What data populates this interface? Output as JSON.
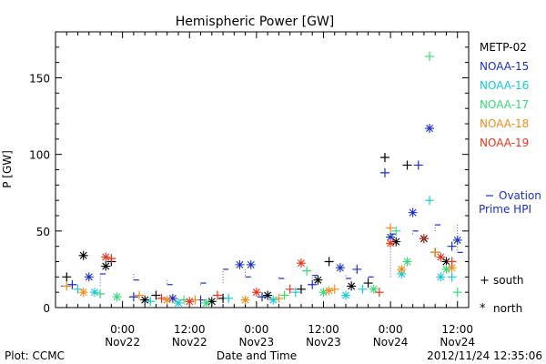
{
  "chart_data": {
    "type": "scatter",
    "title": "Hemispheric Power [GW]",
    "ylabel": "P [GW]",
    "xlabel": "Date and Time",
    "ylim": [
      0,
      180
    ],
    "y_ticks": [
      0,
      50,
      100,
      150
    ],
    "x_range": [
      "2012-11-21 12:00",
      "2012-11-24 14:00"
    ],
    "x_ticks": [
      {
        "t": "2012-11-22 00:00",
        "time": "0:00",
        "date": "Nov22"
      },
      {
        "t": "2012-11-22 12:00",
        "time": "12:00",
        "date": "Nov22"
      },
      {
        "t": "2012-11-23 00:00",
        "time": "0:00",
        "date": "Nov23"
      },
      {
        "t": "2012-11-23 12:00",
        "time": "12:00",
        "date": "Nov23"
      },
      {
        "t": "2012-11-24 00:00",
        "time": "0:00",
        "date": "Nov24"
      },
      {
        "t": "2012-11-24 12:00",
        "time": "12:00",
        "date": "Nov24"
      }
    ],
    "grid": false,
    "legend_position": "right",
    "series": [
      {
        "name": "METP-02",
        "color": "#000000",
        "south": [
          [
            "2012-11-21 14:00",
            20
          ],
          [
            "2012-11-21 22:00",
            30
          ],
          [
            "2012-11-22 06:00",
            8
          ],
          [
            "2012-11-22 18:00",
            6
          ],
          [
            "2012-11-23 08:00",
            12
          ],
          [
            "2012-11-23 13:00",
            30
          ],
          [
            "2012-11-23 20:00",
            16
          ],
          [
            "2012-11-23 23:00",
            98
          ],
          [
            "2012-11-24 03:00",
            93
          ],
          [
            "2012-11-24 08:00",
            36
          ]
        ],
        "north": [
          [
            "2012-11-21 17:00",
            34
          ],
          [
            "2012-11-21 21:00",
            27
          ],
          [
            "2012-11-22 04:00",
            5
          ],
          [
            "2012-11-22 16:00",
            4
          ],
          [
            "2012-11-23 02:00",
            8
          ],
          [
            "2012-11-23 11:00",
            18
          ],
          [
            "2012-11-23 17:00",
            14
          ],
          [
            "2012-11-24 01:00",
            43
          ],
          [
            "2012-11-24 06:00",
            45
          ],
          [
            "2012-11-24 10:00",
            30
          ]
        ]
      },
      {
        "name": "NOAA-15",
        "color": "#1a2fc4",
        "south": [
          [
            "2012-11-21 15:00",
            15
          ],
          [
            "2012-11-22 02:00",
            7
          ],
          [
            "2012-11-22 14:00",
            5
          ],
          [
            "2012-11-23 01:00",
            7
          ],
          [
            "2012-11-23 10:00",
            15
          ],
          [
            "2012-11-23 18:00",
            25
          ],
          [
            "2012-11-23 23:00",
            88
          ],
          [
            "2012-11-24 05:00",
            93
          ],
          [
            "2012-11-24 11:00",
            40
          ]
        ],
        "north": [
          [
            "2012-11-21 18:00",
            20
          ],
          [
            "2012-11-22 09:00",
            6
          ],
          [
            "2012-11-22 21:00",
            28
          ],
          [
            "2012-11-22 23:00",
            28
          ],
          [
            "2012-11-23 15:00",
            26
          ],
          [
            "2012-11-24 00:00",
            46
          ],
          [
            "2012-11-24 04:00",
            62
          ],
          [
            "2012-11-24 07:00",
            117
          ],
          [
            "2012-11-24 12:00",
            44
          ]
        ]
      },
      {
        "name": "NOAA-16",
        "color": "#18c8d8",
        "south": [
          [
            "2012-11-21 16:00",
            12
          ],
          [
            "2012-11-22 05:00",
            4
          ],
          [
            "2012-11-22 19:00",
            6
          ],
          [
            "2012-11-23 07:00",
            10
          ],
          [
            "2012-11-23 19:00",
            12
          ],
          [
            "2012-11-24 07:00",
            70
          ],
          [
            "2012-11-24 11:00",
            20
          ]
        ],
        "north": [
          [
            "2012-11-21 19:00",
            10
          ],
          [
            "2012-11-22 10:00",
            3
          ],
          [
            "2012-11-23 03:00",
            5
          ],
          [
            "2012-11-23 16:00",
            8
          ],
          [
            "2012-11-24 02:00",
            22
          ],
          [
            "2012-11-24 09:00",
            20
          ]
        ]
      },
      {
        "name": "NOAA-17",
        "color": "#38d878",
        "south": [
          [
            "2012-11-21 20:00",
            9
          ],
          [
            "2012-11-22 11:00",
            5
          ],
          [
            "2012-11-23 05:00",
            8
          ],
          [
            "2012-11-23 09:00",
            24
          ],
          [
            "2012-11-24 01:00",
            50
          ],
          [
            "2012-11-24 07:00",
            164
          ],
          [
            "2012-11-24 12:00",
            10
          ]
        ],
        "north": [
          [
            "2012-11-21 23:00",
            7
          ],
          [
            "2012-11-22 15:00",
            3
          ],
          [
            "2012-11-23 12:00",
            10
          ],
          [
            "2012-11-23 21:00",
            12
          ],
          [
            "2012-11-24 03:00",
            30
          ],
          [
            "2012-11-24 10:00",
            25
          ]
        ]
      },
      {
        "name": "NOAA-18",
        "color": "#f08c1c",
        "south": [
          [
            "2012-11-21 14:00",
            14
          ],
          [
            "2012-11-22 03:00",
            8
          ],
          [
            "2012-11-22 13:00",
            5
          ],
          [
            "2012-11-23 04:00",
            6
          ],
          [
            "2012-11-23 14:00",
            12
          ],
          [
            "2012-11-24 00:00",
            52
          ],
          [
            "2012-11-24 08:00",
            36
          ]
        ],
        "north": [
          [
            "2012-11-21 17:00",
            10
          ],
          [
            "2012-11-22 08:00",
            5
          ],
          [
            "2012-11-22 22:00",
            5
          ],
          [
            "2012-11-23 13:00",
            11
          ],
          [
            "2012-11-24 02:00",
            25
          ],
          [
            "2012-11-24 11:00",
            26
          ]
        ]
      },
      {
        "name": "NOAA-19",
        "color": "#e8341c",
        "south": [
          [
            "2012-11-21 22:00",
            32
          ],
          [
            "2012-11-22 07:00",
            6
          ],
          [
            "2012-11-22 17:00",
            8
          ],
          [
            "2012-11-23 06:00",
            12
          ],
          [
            "2012-11-23 22:00",
            10
          ],
          [
            "2012-11-24 06:00",
            45
          ],
          [
            "2012-11-24 11:00",
            30
          ]
        ],
        "north": [
          [
            "2012-11-21 21:00",
            33
          ],
          [
            "2012-11-22 12:00",
            4
          ],
          [
            "2012-11-23 00:00",
            10
          ],
          [
            "2012-11-23 08:00",
            29
          ],
          [
            "2012-11-24 00:00",
            42
          ],
          [
            "2012-11-24 09:00",
            33
          ]
        ]
      }
    ],
    "ovation": {
      "label_line1": "Ovation",
      "label_line2": "Prime HPI",
      "color": "#1a2fc4",
      "values": [
        [
          "2012-11-21 13:00",
          14
        ],
        [
          "2012-11-21 20:00",
          22
        ],
        [
          "2012-11-22 02:00",
          18
        ],
        [
          "2012-11-22 08:00",
          15
        ],
        [
          "2012-11-22 14:00",
          16
        ],
        [
          "2012-11-22 18:00",
          25
        ],
        [
          "2012-11-22 22:00",
          20
        ],
        [
          "2012-11-23 04:00",
          19
        ],
        [
          "2012-11-23 10:00",
          21
        ],
        [
          "2012-11-23 16:00",
          19
        ],
        [
          "2012-11-23 20:00",
          20
        ],
        [
          "2012-11-24 00:00",
          48
        ],
        [
          "2012-11-24 04:00",
          50
        ],
        [
          "2012-11-24 08:00",
          54
        ],
        [
          "2012-11-24 12:00",
          36
        ]
      ]
    },
    "symbol_legend": {
      "south_symbol": "+",
      "south_label": "south",
      "north_symbol": "*",
      "north_label": "north"
    }
  },
  "footer": {
    "plot_credit": "Plot: CCMC",
    "timestamp": "2012/11/24 12:35:06"
  }
}
